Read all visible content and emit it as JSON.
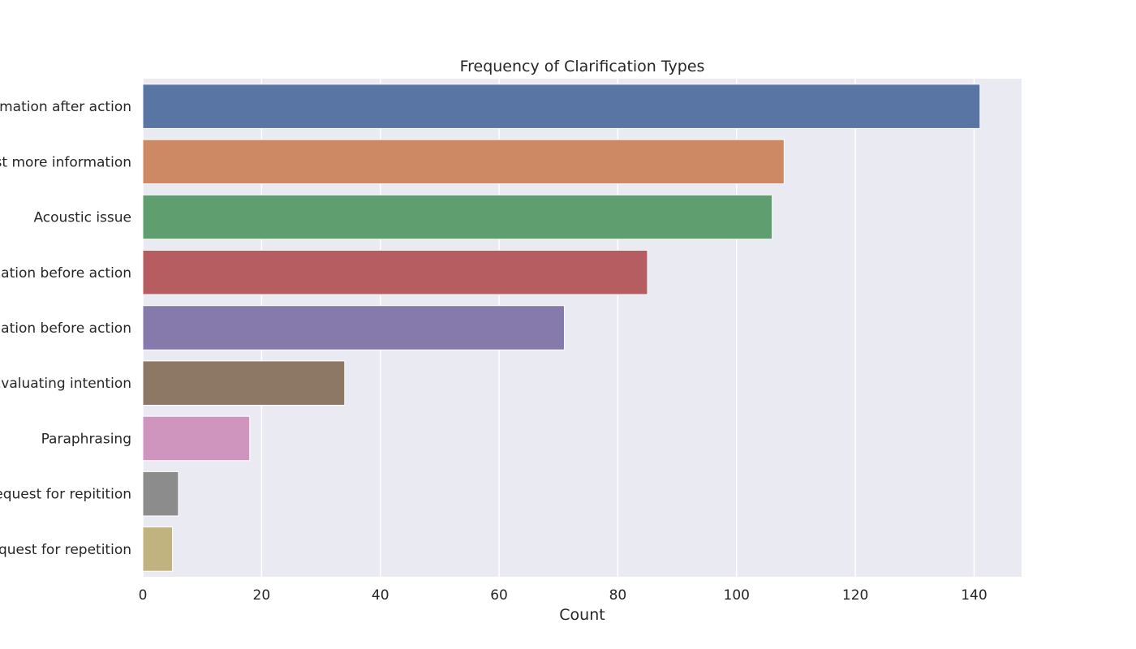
{
  "chart_data": {
    "type": "bar",
    "orientation": "horizontal",
    "title": "Frequency of Clarification Types",
    "xlabel": "Count",
    "ylabel": "",
    "xlim": [
      0,
      148
    ],
    "x_ticks": [
      0,
      20,
      40,
      60,
      80,
      100,
      120,
      140
    ],
    "grid": true,
    "categories": [
      "Confirmation after action",
      "Request more information",
      "Acoustic issue",
      "Confirmation before action",
      "Information before action",
      "Evaluating intention",
      "Paraphrasing",
      "Request for repitition",
      "Request for repetition"
    ],
    "values": [
      141,
      108,
      106,
      85,
      71,
      34,
      18,
      6,
      5
    ],
    "colors": [
      "#5875a4",
      "#cc8963",
      "#5f9e6e",
      "#b55d60",
      "#857aab",
      "#8d7866",
      "#d095bf",
      "#8c8c8c",
      "#c1b37f"
    ],
    "background": "#eaeaf2"
  }
}
